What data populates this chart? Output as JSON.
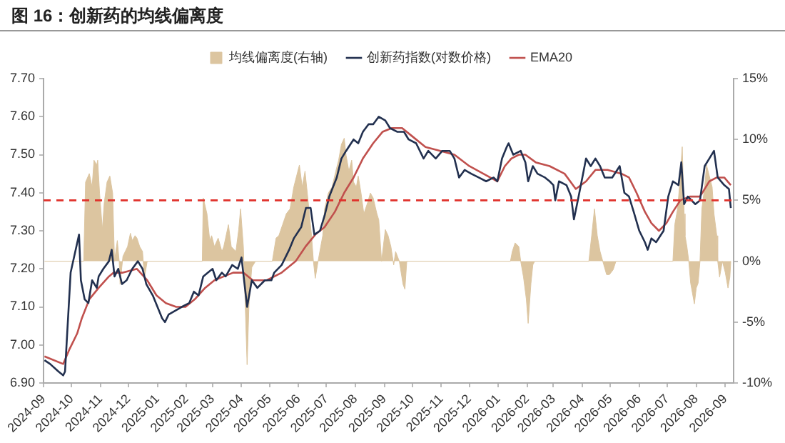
{
  "chart_data": {
    "type": "line",
    "title": "图 16：创新药的均线偏离度",
    "legend": "top",
    "grid": false,
    "marker": "none",
    "xlim": [
      "2024-09",
      "2026-09-10"
    ],
    "xticks": [
      "2024-09",
      "2024-10",
      "2024-11",
      "2024-12",
      "2025-01",
      "2025-02",
      "2025-03",
      "2025-04",
      "2025-05",
      "2025-06",
      "2025-07",
      "2025-08",
      "2025-09",
      "2025-10",
      "2025-11",
      "2025-12",
      "2026-01",
      "2026-02",
      "2026-03",
      "2026-04",
      "2026-05",
      "2026-06",
      "2026-07",
      "2026-08",
      "2026-09"
    ],
    "ylim": [
      6.9,
      7.7
    ],
    "yticks": [
      {
        "value": 6.9,
        "label": "6.90"
      },
      {
        "value": 7.0,
        "label": "7.00"
      },
      {
        "value": 7.1,
        "label": "7.10"
      },
      {
        "value": 7.2,
        "label": "7.20"
      },
      {
        "value": 7.3,
        "label": "7.30"
      },
      {
        "value": 7.4,
        "label": "7.40"
      },
      {
        "value": 7.5,
        "label": "7.50"
      },
      {
        "value": 7.6,
        "label": "7.60"
      },
      {
        "value": 7.7,
        "label": "7.70"
      }
    ],
    "y2lim": [
      -10,
      15
    ],
    "y2ticks": [
      {
        "value": -10,
        "label": "-10%"
      },
      {
        "value": -5,
        "label": "-5%"
      },
      {
        "value": 0,
        "label": "0%"
      },
      {
        "value": 5,
        "label": "5%"
      },
      {
        "value": 10,
        "label": "10%"
      },
      {
        "value": 15,
        "label": "15%"
      }
    ],
    "ref_lines": [
      {
        "axis": "y2",
        "value": 5,
        "color": "#e0302a",
        "line_style": "dashed"
      }
    ],
    "series": [
      {
        "name": "均线偏离度(右轴)",
        "type": "area",
        "axis": "y2",
        "color": "#dcc5a0",
        "x": [
          "2024-09-02",
          "2024-10-14",
          "2024-10-16",
          "2024-10-20",
          "2024-10-23",
          "2024-10-25",
          "2024-10-28",
          "2024-10-29",
          "2024-10-31",
          "2024-11-03",
          "2024-11-05",
          "2024-11-08",
          "2024-11-11",
          "2024-11-14",
          "2024-11-16",
          "2024-11-19",
          "2024-11-21",
          "2024-11-22",
          "2024-11-25",
          "2024-11-30",
          "2024-12-03",
          "2024-12-05",
          "2024-12-08",
          "2024-12-10",
          "2024-12-13",
          "2024-12-16",
          "2024-12-18",
          "2024-12-21",
          "2025-02-18",
          "2025-02-19",
          "2025-02-23",
          "2025-02-26",
          "2025-02-28",
          "2025-03-03",
          "2025-03-07",
          "2025-03-11",
          "2025-03-13",
          "2025-03-18",
          "2025-03-21",
          "2025-03-26",
          "2025-03-29",
          "2025-03-31",
          "2025-04-03",
          "2025-04-07",
          "2025-04-09",
          "2025-04-12",
          "2025-04-16",
          "2025-05-04",
          "2025-05-08",
          "2025-05-11",
          "2025-05-15",
          "2025-05-19",
          "2025-05-23",
          "2025-05-27",
          "2025-05-30",
          "2025-06-02",
          "2025-06-05",
          "2025-06-08",
          "2025-06-11",
          "2025-06-15",
          "2025-06-17",
          "2025-06-19",
          "2025-06-22",
          "2025-06-27",
          "2025-06-29",
          "2025-07-03",
          "2025-07-07",
          "2025-07-11",
          "2025-07-14",
          "2025-07-17",
          "2025-07-20",
          "2025-07-22",
          "2025-07-25",
          "2025-07-28",
          "2025-07-30",
          "2025-08-02",
          "2025-08-04",
          "2025-08-07",
          "2025-08-10",
          "2025-08-14",
          "2025-08-17",
          "2025-08-20",
          "2025-08-24",
          "2025-08-26",
          "2025-08-29",
          "2025-09-02",
          "2025-09-05",
          "2025-09-08",
          "2025-09-11",
          "2025-09-13",
          "2025-09-17",
          "2025-09-21",
          "2025-09-23",
          "2025-09-25",
          "2026-01-14",
          "2026-01-16",
          "2026-01-19",
          "2026-01-23",
          "2026-01-25",
          "2026-01-28",
          "2026-01-31",
          "2026-02-02",
          "2026-02-05",
          "2026-02-07",
          "2026-02-09",
          "2026-04-08",
          "2026-04-11",
          "2026-04-14",
          "2026-04-17",
          "2026-04-20",
          "2026-04-24",
          "2026-04-27",
          "2026-04-30",
          "2026-05-04",
          "2026-05-07",
          "2026-07-07",
          "2026-07-09",
          "2026-07-12",
          "2026-07-14",
          "2026-07-17",
          "2026-07-19",
          "2026-07-20",
          "2026-07-22",
          "2026-07-24",
          "2026-07-26",
          "2026-07-30",
          "2026-08-01",
          "2026-08-03",
          "2026-08-05",
          "2026-08-07",
          "2026-08-10",
          "2026-08-12",
          "2026-08-15",
          "2026-08-18",
          "2026-08-20",
          "2026-08-23",
          "2026-08-24",
          "2026-08-26",
          "2026-08-29",
          "2026-09-01",
          "2026-09-04",
          "2026-09-06",
          "2026-09-07"
        ],
        "values": [
          0,
          0,
          6.5,
          7.2,
          6.1,
          8.3,
          7.9,
          8.3,
          5.6,
          2.6,
          4.8,
          6.5,
          7.0,
          5.6,
          0,
          1.7,
          0,
          -1.9,
          0.4,
          1.2,
          2.3,
          1.7,
          2.1,
          1.9,
          1.2,
          0.8,
          -1.4,
          0,
          0,
          5.2,
          3.9,
          1.7,
          2.1,
          1.2,
          1.9,
          0.8,
          1.2,
          3.0,
          1.2,
          0.8,
          2.6,
          4.3,
          1.2,
          -8.5,
          -3.6,
          -0.5,
          0,
          0,
          1.9,
          2.1,
          3.0,
          3.9,
          4.3,
          6.1,
          7.0,
          7.9,
          6.1,
          7.4,
          5.2,
          2.1,
          0,
          -1.4,
          0,
          2.1,
          4.3,
          5.6,
          6.1,
          7.4,
          8.3,
          9.6,
          10.1,
          8.7,
          7.4,
          8.3,
          6.5,
          6.1,
          7.0,
          5.6,
          3.9,
          4.8,
          5.6,
          5.2,
          3.9,
          3.4,
          0,
          2.6,
          2.1,
          1.2,
          -0.3,
          0.8,
          0,
          -1.9,
          -2.3,
          0,
          0,
          0.8,
          1.5,
          1.2,
          0,
          -1.3,
          -3.1,
          -5.1,
          -1.8,
          -0.3,
          0,
          0,
          2.1,
          4.3,
          2.1,
          0.8,
          -0.3,
          -1.1,
          -1.1,
          -0.7,
          0,
          0,
          3.0,
          4.3,
          6.1,
          9.4,
          3.9,
          2.1,
          1.2,
          0,
          -1.8,
          -3.5,
          -2.2,
          -1.8,
          0,
          4.3,
          6.1,
          7.9,
          7.0,
          6.1,
          3.9,
          2.1,
          0,
          -1.3,
          0,
          -0.9,
          -2.2,
          -1.3,
          0
        ]
      },
      {
        "name": "创新药指数(对数价格)",
        "type": "line",
        "color": "#22304f",
        "x": [
          "2024-09-02",
          "2024-09-08",
          "2024-09-17",
          "2024-09-22",
          "2024-09-24",
          "2024-09-30",
          "2024-10-09",
          "2024-10-11",
          "2024-10-15",
          "2024-10-19",
          "2024-10-23",
          "2024-10-28",
          "2024-10-30",
          "2024-11-04",
          "2024-11-10",
          "2024-11-13",
          "2024-11-16",
          "2024-11-20",
          "2024-11-24",
          "2024-11-29",
          "2024-12-05",
          "2024-12-11",
          "2024-12-16",
          "2024-12-20",
          "2024-12-27",
          "2025-01-01",
          "2025-01-06",
          "2025-01-09",
          "2025-01-13",
          "2025-01-27",
          "2025-02-04",
          "2025-02-09",
          "2025-02-14",
          "2025-02-19",
          "2025-02-24",
          "2025-03-01",
          "2025-03-05",
          "2025-03-11",
          "2025-03-15",
          "2025-03-22",
          "2025-03-28",
          "2025-04-01",
          "2025-04-07",
          "2025-04-12",
          "2025-04-18",
          "2025-04-26",
          "2025-05-03",
          "2025-05-06",
          "2025-05-14",
          "2025-05-22",
          "2025-05-27",
          "2025-06-04",
          "2025-06-09",
          "2025-06-14",
          "2025-06-18",
          "2025-06-24",
          "2025-06-29",
          "2025-07-04",
          "2025-07-12",
          "2025-07-17",
          "2025-07-22",
          "2025-07-30",
          "2025-08-04",
          "2025-08-09",
          "2025-08-15",
          "2025-08-20",
          "2025-08-26",
          "2025-09-02",
          "2025-09-07",
          "2025-09-15",
          "2025-09-22",
          "2025-09-27",
          "2025-10-05",
          "2025-10-13",
          "2025-10-18",
          "2025-10-26",
          "2025-11-02",
          "2025-11-10",
          "2025-11-15",
          "2025-11-20",
          "2025-11-26",
          "2025-12-03",
          "2025-12-11",
          "2025-12-19",
          "2025-12-27",
          "2025-12-31",
          "2026-01-05",
          "2026-01-10",
          "2026-01-12",
          "2026-01-17",
          "2026-01-25",
          "2026-01-30",
          "2026-02-02",
          "2026-02-07",
          "2026-02-12",
          "2026-02-20",
          "2026-02-25",
          "2026-03-01",
          "2026-03-03",
          "2026-03-07",
          "2026-03-15",
          "2026-03-20",
          "2026-03-23",
          "2026-03-28",
          "2026-04-01",
          "2026-04-05",
          "2026-04-10",
          "2026-04-15",
          "2026-04-20",
          "2026-04-25",
          "2026-05-03",
          "2026-05-11",
          "2026-05-16",
          "2026-05-21",
          "2026-05-26",
          "2026-06-01",
          "2026-06-07",
          "2026-06-10",
          "2026-06-14",
          "2026-06-19",
          "2026-06-27",
          "2026-07-02",
          "2026-07-07",
          "2026-07-13",
          "2026-07-16",
          "2026-07-19",
          "2026-07-23",
          "2026-07-31",
          "2026-08-05",
          "2026-08-10",
          "2026-08-15",
          "2026-08-20",
          "2026-08-24",
          "2026-08-31",
          "2026-09-05",
          "2026-09-07"
        ],
        "values": [
          6.96,
          6.95,
          6.93,
          6.92,
          6.93,
          7.19,
          7.29,
          7.17,
          7.12,
          7.11,
          7.17,
          7.15,
          7.18,
          7.2,
          7.22,
          7.25,
          7.18,
          7.2,
          7.16,
          7.17,
          7.2,
          7.22,
          7.2,
          7.16,
          7.13,
          7.1,
          7.07,
          7.06,
          7.08,
          7.1,
          7.11,
          7.14,
          7.13,
          7.18,
          7.19,
          7.2,
          7.17,
          7.19,
          7.18,
          7.21,
          7.2,
          7.23,
          7.1,
          7.17,
          7.15,
          7.17,
          7.17,
          7.19,
          7.21,
          7.25,
          7.28,
          7.31,
          7.36,
          7.36,
          7.29,
          7.3,
          7.34,
          7.39,
          7.44,
          7.49,
          7.51,
          7.54,
          7.53,
          7.56,
          7.58,
          7.58,
          7.6,
          7.59,
          7.57,
          7.56,
          7.56,
          7.54,
          7.53,
          7.49,
          7.51,
          7.49,
          7.51,
          7.51,
          7.49,
          7.44,
          7.46,
          7.45,
          7.44,
          7.43,
          7.44,
          7.43,
          7.49,
          7.52,
          7.53,
          7.5,
          7.51,
          7.48,
          7.43,
          7.47,
          7.45,
          7.44,
          7.43,
          7.42,
          7.38,
          7.43,
          7.42,
          7.39,
          7.33,
          7.39,
          7.44,
          7.49,
          7.47,
          7.49,
          7.47,
          7.44,
          7.44,
          7.47,
          7.4,
          7.39,
          7.35,
          7.3,
          7.27,
          7.25,
          7.28,
          7.27,
          7.3,
          7.39,
          7.43,
          7.42,
          7.48,
          7.37,
          7.39,
          7.37,
          7.38,
          7.47,
          7.49,
          7.51,
          7.44,
          7.42,
          7.41,
          7.36
        ]
      },
      {
        "name": "EMA20",
        "type": "line",
        "color": "#c0504d",
        "x": [
          "2024-09-02",
          "2024-09-22",
          "2024-09-29",
          "2024-10-07",
          "2024-10-12",
          "2024-10-20",
          "2024-10-30",
          "2024-11-10",
          "2024-11-15",
          "2024-11-25",
          "2024-12-10",
          "2024-12-21",
          "2024-12-31",
          "2025-01-10",
          "2025-01-21",
          "2025-01-31",
          "2025-02-10",
          "2025-02-21",
          "2025-03-03",
          "2025-03-13",
          "2025-03-23",
          "2025-04-03",
          "2025-04-13",
          "2025-04-28",
          "2025-05-14",
          "2025-05-29",
          "2025-06-09",
          "2025-06-19",
          "2025-06-29",
          "2025-07-10",
          "2025-07-20",
          "2025-07-30",
          "2025-08-09",
          "2025-08-20",
          "2025-08-30",
          "2025-09-09",
          "2025-09-20",
          "2025-09-30",
          "2025-10-15",
          "2025-10-31",
          "2025-11-15",
          "2025-12-01",
          "2025-12-16",
          "2025-12-31",
          "2026-01-08",
          "2026-01-15",
          "2026-01-23",
          "2026-01-30",
          "2026-02-10",
          "2026-02-25",
          "2026-03-13",
          "2026-03-25",
          "2026-04-05",
          "2026-04-15",
          "2026-04-28",
          "2026-05-13",
          "2026-05-21",
          "2026-05-29",
          "2026-06-07",
          "2026-06-14",
          "2026-06-22",
          "2026-06-30",
          "2026-07-07",
          "2026-07-15",
          "2026-07-25",
          "2026-08-05",
          "2026-08-15",
          "2026-08-23",
          "2026-08-31",
          "2026-09-07"
        ],
        "values": [
          6.97,
          6.95,
          6.99,
          7.03,
          7.07,
          7.12,
          7.15,
          7.18,
          7.19,
          7.19,
          7.2,
          7.17,
          7.13,
          7.11,
          7.1,
          7.1,
          7.12,
          7.15,
          7.17,
          7.18,
          7.19,
          7.19,
          7.17,
          7.17,
          7.19,
          7.22,
          7.26,
          7.29,
          7.31,
          7.35,
          7.4,
          7.44,
          7.49,
          7.53,
          7.56,
          7.57,
          7.57,
          7.55,
          7.52,
          7.51,
          7.5,
          7.47,
          7.45,
          7.43,
          7.47,
          7.49,
          7.5,
          7.5,
          7.48,
          7.47,
          7.45,
          7.41,
          7.43,
          7.46,
          7.46,
          7.45,
          7.44,
          7.4,
          7.35,
          7.32,
          7.3,
          7.32,
          7.35,
          7.38,
          7.39,
          7.39,
          7.43,
          7.44,
          7.44,
          7.42
        ]
      }
    ]
  }
}
